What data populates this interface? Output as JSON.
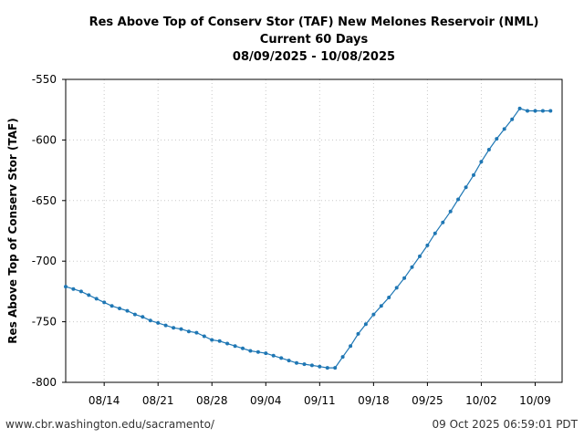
{
  "chart_data": {
    "type": "line",
    "title": [
      "Res Above Top of Conserv Stor (TAF) New Melones Reservoir (NML)",
      "Current 60 Days",
      "08/09/2025 - 10/08/2025"
    ],
    "xlabel": "",
    "ylabel": "Res Above Top of Conserv Stor (TAF)",
    "ylim": [
      -800,
      -550
    ],
    "yticks": [
      -550,
      -600,
      -650,
      -700,
      -750,
      -800
    ],
    "xlim": [
      0,
      64.5
    ],
    "xticks": [
      {
        "day": 5,
        "label": "08/14"
      },
      {
        "day": 12,
        "label": "08/21"
      },
      {
        "day": 19,
        "label": "08/28"
      },
      {
        "day": 26,
        "label": "09/04"
      },
      {
        "day": 33,
        "label": "09/11"
      },
      {
        "day": 40,
        "label": "09/18"
      },
      {
        "day": 47,
        "label": "09/25"
      },
      {
        "day": 54,
        "label": "10/02"
      },
      {
        "day": 61,
        "label": "10/09"
      }
    ],
    "grid": true,
    "color": "#1f77b4",
    "series": [
      {
        "name": "Res Above Top of Conserv Stor (TAF)",
        "x": [
          0,
          1,
          2,
          3,
          4,
          5,
          6,
          7,
          8,
          9,
          10,
          11,
          12,
          13,
          14,
          15,
          16,
          17,
          18,
          19,
          20,
          21,
          22,
          23,
          24,
          25,
          26,
          27,
          28,
          29,
          30,
          31,
          32,
          33,
          34,
          35,
          36,
          37,
          38,
          39,
          40,
          41,
          42,
          43,
          44,
          45,
          46,
          47,
          48,
          49,
          50,
          51,
          52,
          53,
          54,
          55,
          56,
          57,
          58,
          59,
          60,
          61,
          62,
          63
        ],
        "values": [
          -721,
          -723,
          -725,
          -728,
          -731,
          -734,
          -737,
          -739,
          -741,
          -744,
          -746,
          -749,
          -751,
          -753,
          -755,
          -756,
          -758,
          -759,
          -762,
          -765,
          -766,
          -768,
          -770,
          -772,
          -774,
          -775,
          -776,
          -778,
          -780,
          -782,
          -784,
          -785,
          -786,
          -787,
          -788,
          -788,
          -779,
          -770,
          -760,
          -752,
          -744,
          -737,
          -730,
          -722,
          -714,
          -705,
          -696,
          -687,
          -677,
          -668,
          -659,
          -649,
          -639,
          -629,
          -618,
          -608,
          -599,
          -591,
          -583,
          -574,
          -576,
          -576,
          -576,
          -576
        ]
      }
    ]
  },
  "footer": {
    "url": "www.cbr.washington.edu/sacramento/",
    "timestamp": "09 Oct 2025 06:59:01 PDT"
  }
}
